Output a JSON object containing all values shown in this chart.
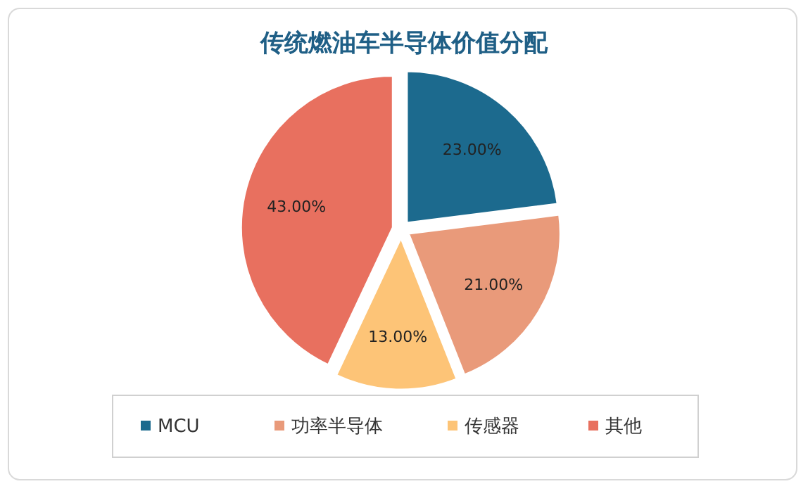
{
  "chart_data": {
    "type": "pie",
    "title": "传统燃油车半导体价值分配",
    "categories": [
      "MCU",
      "功率半导体",
      "传感器",
      "其他"
    ],
    "values": [
      23,
      21,
      13,
      43
    ],
    "colors": [
      "#1c6a8e",
      "#e99a7a",
      "#fdc477",
      "#e8705f"
    ],
    "value_labels": [
      "23.00%",
      "21.00%",
      "13.00%",
      "43.00%"
    ],
    "legend": "bottom"
  }
}
